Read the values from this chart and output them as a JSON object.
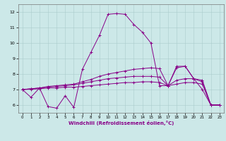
{
  "xlabel": "Windchill (Refroidissement éolien,°C)",
  "bg_color": "#cce8e8",
  "line_color": "#880088",
  "grid_color": "#aacccc",
  "xlim": [
    -0.5,
    23.5
  ],
  "ylim": [
    5.5,
    12.5
  ],
  "yticks": [
    6,
    7,
    8,
    9,
    10,
    11,
    12
  ],
  "xticks": [
    0,
    1,
    2,
    3,
    4,
    5,
    6,
    7,
    8,
    9,
    10,
    11,
    12,
    13,
    14,
    15,
    16,
    17,
    18,
    19,
    20,
    21,
    22,
    23
  ],
  "series": [
    {
      "x": [
        0,
        1,
        2,
        3,
        4,
        5,
        6,
        7,
        8,
        9,
        10,
        11,
        12,
        13,
        14,
        15,
        16,
        17,
        18,
        19,
        20,
        21,
        22,
        23
      ],
      "y": [
        7.0,
        6.5,
        7.1,
        5.9,
        5.8,
        6.6,
        5.85,
        8.3,
        9.4,
        10.5,
        11.85,
        11.9,
        11.85,
        11.2,
        10.7,
        10.0,
        7.25,
        7.25,
        8.5,
        8.5,
        7.7,
        7.0,
        6.0,
        6.0
      ]
    },
    {
      "x": [
        0,
        1,
        2,
        3,
        4,
        5,
        6,
        7,
        8,
        9,
        10,
        11,
        12,
        13,
        14,
        15,
        16,
        17,
        18,
        19,
        20,
        21,
        22,
        23
      ],
      "y": [
        7.0,
        7.05,
        7.1,
        7.2,
        7.25,
        7.3,
        7.35,
        7.5,
        7.65,
        7.85,
        8.0,
        8.1,
        8.2,
        8.3,
        8.35,
        8.4,
        8.35,
        7.25,
        8.4,
        8.5,
        7.7,
        7.6,
        6.0,
        6.0
      ]
    },
    {
      "x": [
        0,
        1,
        2,
        3,
        4,
        5,
        6,
        7,
        8,
        9,
        10,
        11,
        12,
        13,
        14,
        15,
        16,
        17,
        18,
        19,
        20,
        21,
        22,
        23
      ],
      "y": [
        7.0,
        7.05,
        7.1,
        7.15,
        7.2,
        7.25,
        7.3,
        7.4,
        7.5,
        7.6,
        7.7,
        7.75,
        7.8,
        7.85,
        7.85,
        7.85,
        7.8,
        7.25,
        7.6,
        7.7,
        7.7,
        7.5,
        6.0,
        6.0
      ]
    },
    {
      "x": [
        0,
        1,
        2,
        3,
        4,
        5,
        6,
        7,
        8,
        9,
        10,
        11,
        12,
        13,
        14,
        15,
        16,
        17,
        18,
        19,
        20,
        21,
        22,
        23
      ],
      "y": [
        7.0,
        7.02,
        7.05,
        7.1,
        7.1,
        7.15,
        7.15,
        7.2,
        7.25,
        7.3,
        7.35,
        7.4,
        7.45,
        7.45,
        7.5,
        7.5,
        7.45,
        7.25,
        7.35,
        7.45,
        7.45,
        7.35,
        6.0,
        6.0
      ]
    }
  ]
}
